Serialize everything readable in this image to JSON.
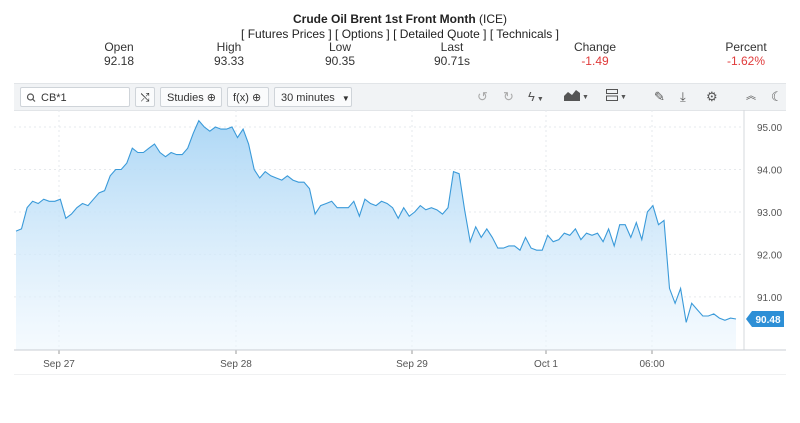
{
  "header": {
    "title": "Crude Oil Brent 1st Front Month",
    "exchange": "(ICE)",
    "links": [
      "Futures Prices",
      "Options",
      "Detailed Quote",
      "Technicals"
    ]
  },
  "quote": {
    "open_label": "Open",
    "open": "92.18",
    "high_label": "High",
    "high": "93.33",
    "low_label": "Low",
    "low": "90.35",
    "last_label": "Last",
    "last": "90.71s",
    "change_label": "Change",
    "change": "-1.49",
    "percent_label": "Percent",
    "percent": "-1.62%"
  },
  "toolbar": {
    "symbol": "CB*1",
    "studies_label": "Studies",
    "fx_label": "f(x)",
    "interval": "30 minutes"
  },
  "colors": {
    "line": "#3a9ad9",
    "negative": "#e03b3b",
    "price_tag": "#2d8fd6"
  },
  "chart_data": {
    "type": "area",
    "x_labels": [
      "Sep 27",
      "Sep 28",
      "Sep 29",
      "Oct 1",
      "06:00"
    ],
    "y_ticks": [
      "95.00",
      "94.00",
      "93.00",
      "92.00",
      "91.00"
    ],
    "ylim": [
      89.75,
      95.4
    ],
    "last_price_label": "90.48",
    "grid": true,
    "series": [
      {
        "values": [
          92.55,
          92.6,
          93.1,
          93.25,
          93.2,
          93.3,
          93.25,
          93.25,
          93.3,
          92.85,
          92.95,
          93.1,
          93.2,
          93.15,
          93.3,
          93.45,
          93.5,
          93.85,
          94.0,
          94.0,
          94.15,
          94.5,
          94.4,
          94.4,
          94.5,
          94.6,
          94.4,
          94.3,
          94.4,
          94.35,
          94.35,
          94.5,
          94.85,
          95.15,
          95.0,
          94.9,
          95.0,
          94.95,
          94.95,
          95.0,
          94.75,
          94.95,
          94.6,
          94.0,
          93.8,
          93.95,
          93.85,
          93.8,
          93.75,
          93.85,
          93.75,
          93.7,
          93.7,
          93.55,
          92.95,
          93.15,
          93.2,
          93.25,
          93.1,
          93.1,
          93.1,
          93.25,
          92.9,
          93.3,
          93.2,
          93.15,
          93.25,
          93.2,
          93.1,
          92.85,
          93.1,
          92.9,
          93.0,
          93.15,
          93.05,
          93.1,
          93.05,
          92.95,
          93.1,
          93.95,
          93.9,
          93.05,
          92.3,
          92.65,
          92.4,
          92.6,
          92.4,
          92.15,
          92.15,
          92.2,
          92.2,
          92.1,
          92.4,
          92.15,
          92.1,
          92.1,
          92.45,
          92.3,
          92.35,
          92.5,
          92.45,
          92.6,
          92.35,
          92.5,
          92.45,
          92.5,
          92.3,
          92.6,
          92.2,
          92.7,
          92.7,
          92.4,
          92.75,
          92.35,
          93.0,
          93.15,
          92.7,
          92.8,
          91.2,
          90.85,
          91.2,
          90.4,
          90.85,
          90.7,
          90.55,
          90.55,
          90.6,
          90.5,
          90.45,
          90.5,
          90.48
        ]
      }
    ]
  }
}
